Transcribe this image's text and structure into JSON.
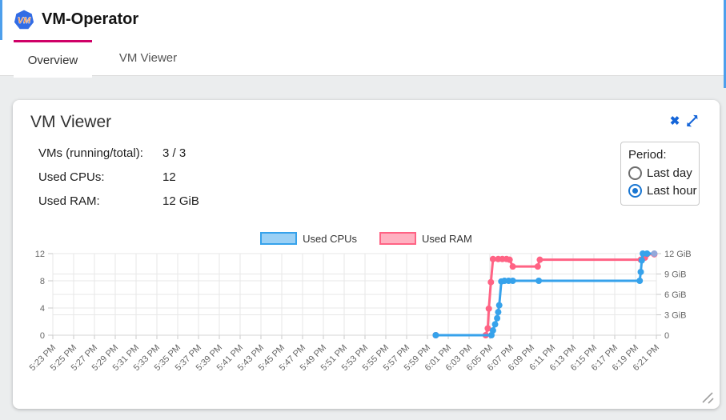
{
  "header": {
    "title": "VM-Operator",
    "logo_text": "VM"
  },
  "tabs": [
    {
      "label": "Overview",
      "active": true
    },
    {
      "label": "VM Viewer",
      "active": false
    }
  ],
  "icons": {
    "close": "✖"
  },
  "card": {
    "title": "VM Viewer",
    "stats": [
      {
        "label": "VMs (running/total):",
        "value": "3 / 3"
      },
      {
        "label": "Used CPUs:",
        "value": "12"
      },
      {
        "label": "Used RAM:",
        "value": "12 GiB"
      }
    ],
    "period": {
      "label": "Period:",
      "options": [
        {
          "label": "Last day",
          "selected": false
        },
        {
          "label": "Last hour",
          "selected": true
        }
      ]
    }
  },
  "chart_data": {
    "type": "line",
    "title": "",
    "legend_position": "top",
    "grid": true,
    "x_ticks": [
      "5:23 PM",
      "5:25 PM",
      "5:27 PM",
      "5:29 PM",
      "5:31 PM",
      "5:33 PM",
      "5:35 PM",
      "5:37 PM",
      "5:39 PM",
      "5:41 PM",
      "5:43 PM",
      "5:45 PM",
      "5:47 PM",
      "5:49 PM",
      "5:51 PM",
      "5:53 PM",
      "5:55 PM",
      "5:57 PM",
      "5:59 PM",
      "6:01 PM",
      "6:03 PM",
      "6:05 PM",
      "6:07 PM",
      "6:09 PM",
      "6:11 PM",
      "6:13 PM",
      "6:15 PM",
      "6:17 PM",
      "6:19 PM",
      "6:21 PM"
    ],
    "x_range_minutes": [
      0,
      58
    ],
    "left_axis": {
      "label": "",
      "ticks": [
        0,
        4,
        8,
        12
      ],
      "range": [
        0,
        12
      ]
    },
    "right_axis": {
      "labels": [
        "0",
        "3 GiB",
        "6 GiB",
        "9 GiB",
        "12 GiB"
      ],
      "values": [
        0,
        3,
        6,
        9,
        12
      ],
      "range": [
        0,
        12
      ]
    },
    "series": [
      {
        "name": "Used CPUs",
        "color": "#36a2eb",
        "fill": "#9ad0f5",
        "axis": "left",
        "points": [
          [
            36.8,
            0
          ],
          [
            42.15,
            0
          ],
          [
            42.3,
            0.7
          ],
          [
            42.5,
            1.6
          ],
          [
            42.7,
            2.5
          ],
          [
            42.8,
            3.4
          ],
          [
            42.9,
            4.4
          ],
          [
            43.1,
            7.9
          ],
          [
            43.4,
            8
          ],
          [
            43.8,
            8
          ],
          [
            44.2,
            8
          ],
          [
            46.7,
            8
          ],
          [
            56.4,
            8
          ],
          [
            56.5,
            9.3
          ],
          [
            56.6,
            11
          ],
          [
            56.7,
            12
          ],
          [
            57.1,
            12
          ],
          [
            57.8,
            12,
            "light"
          ]
        ]
      },
      {
        "name": "Used RAM",
        "color": "#ff6384",
        "fill": "#ffb1c1",
        "axis": "right",
        "points": [
          [
            36.8,
            0
          ],
          [
            41.6,
            0
          ],
          [
            41.8,
            1
          ],
          [
            41.9,
            3.9
          ],
          [
            42.1,
            7.8
          ],
          [
            42.3,
            11.2
          ],
          [
            42.8,
            11.2
          ],
          [
            43.2,
            11.2
          ],
          [
            43.6,
            11.2
          ],
          [
            43.9,
            11.1
          ],
          [
            44.2,
            10.1
          ],
          [
            46.6,
            10.1
          ],
          [
            46.8,
            11.1
          ],
          [
            56.5,
            11.1
          ],
          [
            56.9,
            11.4
          ],
          [
            57.1,
            11.9
          ],
          [
            57.8,
            11.9
          ]
        ]
      }
    ]
  }
}
